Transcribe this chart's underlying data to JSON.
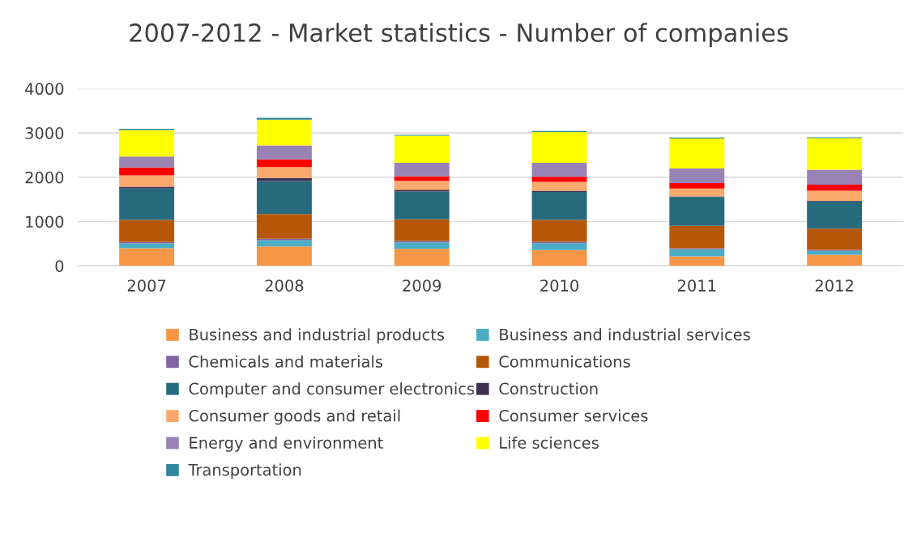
{
  "chart_data": {
    "type": "bar",
    "title": "2007-2012 - Market statistics - Number of companies",
    "stacked": true,
    "grid": "y",
    "legend": "bottom",
    "categories": [
      "2007",
      "2008",
      "2009",
      "2010",
      "2011",
      "2012"
    ],
    "ylim": [
      0,
      4000
    ],
    "yticks": [
      0,
      1000,
      2000,
      3000,
      4000
    ],
    "series": [
      {
        "name": "Business and industrial products",
        "color": "#f79646",
        "values": [
          396,
          439,
          384,
          354,
          213,
          250
        ]
      },
      {
        "name": "Business and industrial services",
        "color": "#4bacc6",
        "values": [
          110,
          140,
          146,
          159,
          159,
          85
        ]
      },
      {
        "name": "Chemicals and materials",
        "color": "#8064a2",
        "values": [
          30,
          30,
          30,
          30,
          25,
          25
        ]
      },
      {
        "name": "Communications",
        "color": "#b65708",
        "values": [
          500,
          561,
          488,
          494,
          506,
          482
        ]
      },
      {
        "name": "Computer and consumer electronics",
        "color": "#276a7c",
        "values": [
          707,
          744,
          628,
          628,
          652,
          610
        ]
      },
      {
        "name": "Construction",
        "color": "#403152",
        "values": [
          43,
          67,
          43,
          30,
          12,
          12
        ]
      },
      {
        "name": "Consumer goods and retail",
        "color": "#f9a96e",
        "values": [
          256,
          250,
          201,
          201,
          177,
          232
        ]
      },
      {
        "name": "Consumer services",
        "color": "#ff0000",
        "values": [
          177,
          171,
          98,
          116,
          122,
          134
        ]
      },
      {
        "name": "Energy and environment",
        "color": "#9983b5",
        "values": [
          250,
          317,
          305,
          311,
          329,
          341
        ]
      },
      {
        "name": "Life sciences",
        "color": "#ffff00",
        "values": [
          598,
          579,
          616,
          695,
          677,
          713
        ]
      },
      {
        "name": "Transportation",
        "color": "#31859c",
        "values": [
          25,
          43,
          18,
          25,
          25,
          18
        ]
      }
    ]
  }
}
